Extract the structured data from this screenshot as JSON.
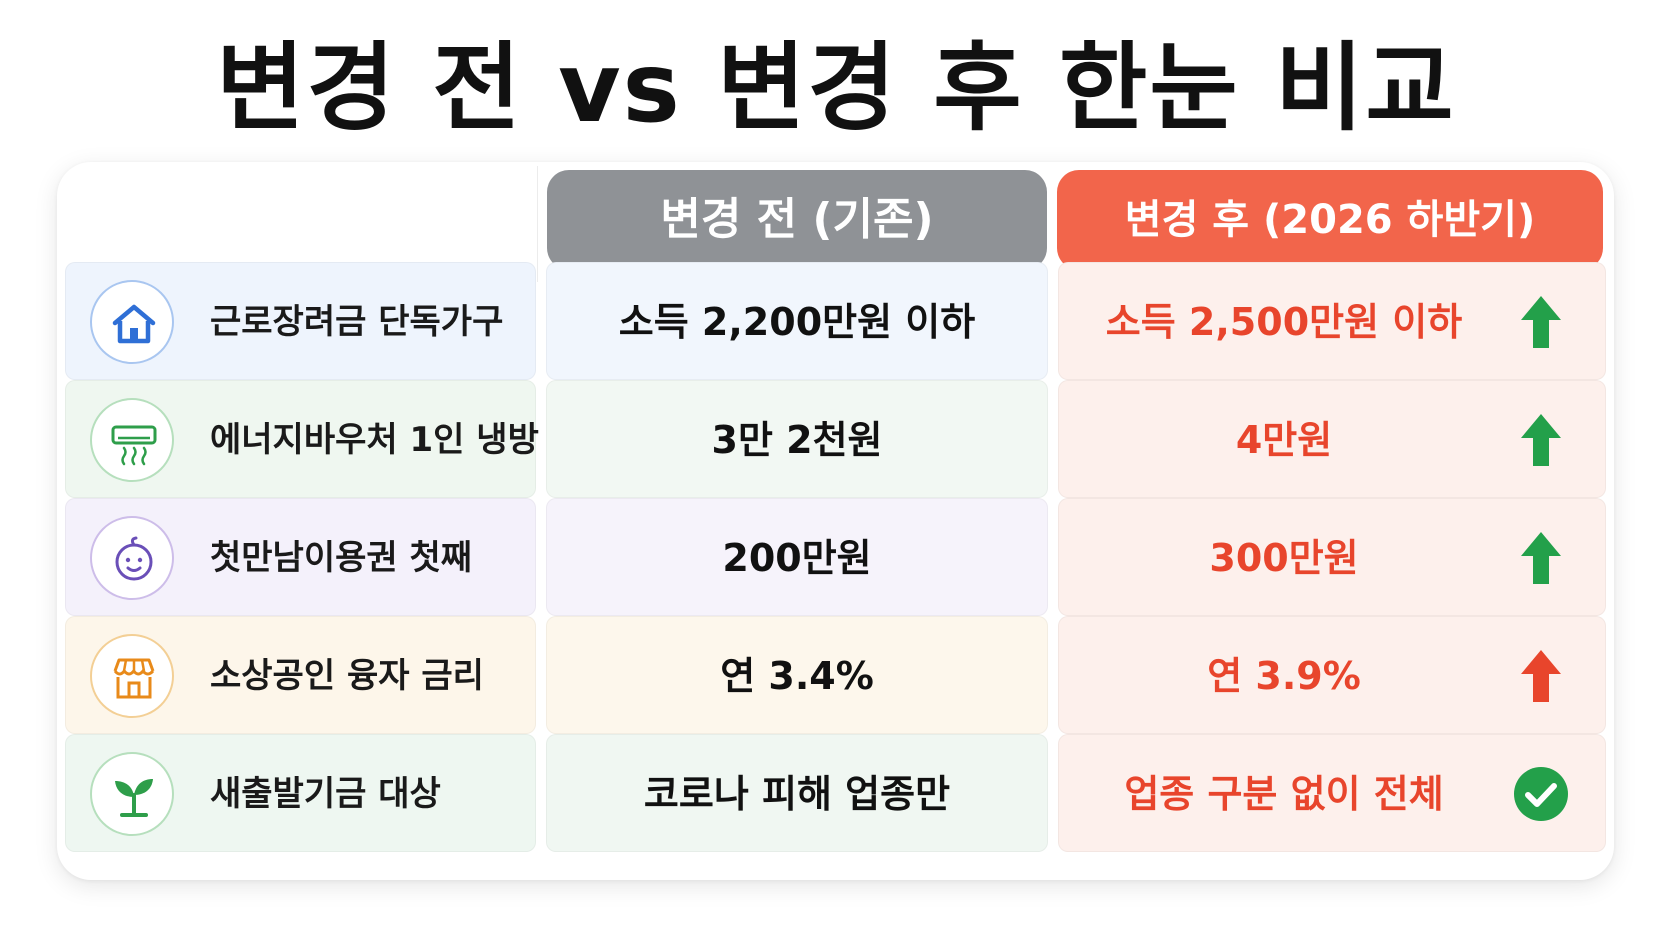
{
  "title": "변경 전 vs 변경 후 한눈 비교",
  "columns": {
    "before": "변경 전 (기존)",
    "after": "변경 후 (2026 하반기)"
  },
  "colors": {
    "before_header": "#8f9296",
    "after_header": "#f2654b",
    "after_text": "#e8452c",
    "arrow_up_green": "#23a04a",
    "arrow_up_red": "#e8452c",
    "check_green": "#23a04a"
  },
  "rows": [
    {
      "icon": "house-icon",
      "label": "근로장려금 단독가구",
      "before": "소득 2,200만원 이하",
      "after": "소득 2,500만원 이하",
      "status": "arrow-up-green-icon"
    },
    {
      "icon": "air-conditioner-icon",
      "label": "에너지바우처 1인 냉방",
      "before": "3만 2천원",
      "after": "4만원",
      "status": "arrow-up-green-icon"
    },
    {
      "icon": "baby-face-icon",
      "label": "첫만남이용권 첫째",
      "before": "200만원",
      "after": "300만원",
      "status": "arrow-up-green-icon"
    },
    {
      "icon": "store-icon",
      "label": "소상공인 융자 금리",
      "before": "연 3.4%",
      "after": "연 3.9%",
      "status": "arrow-up-red-icon"
    },
    {
      "icon": "sprout-icon",
      "label": "새출발기금 대상",
      "before": "코로나 피해 업종만",
      "after": "업종 구분 없이 전체",
      "status": "check-circle-icon"
    }
  ]
}
